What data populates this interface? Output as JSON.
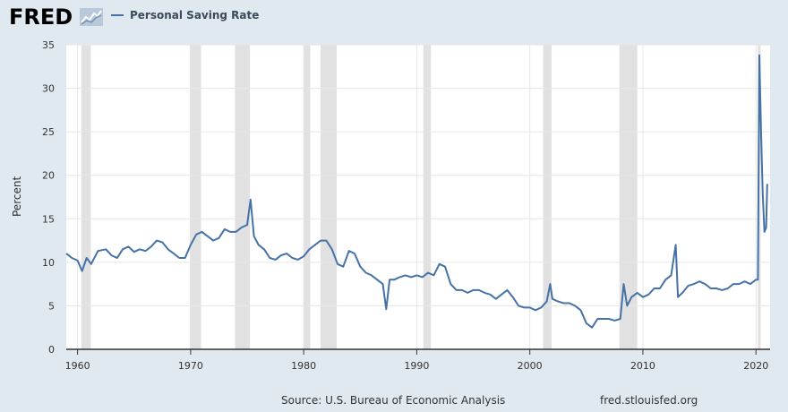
{
  "header": {
    "logo_text": "FRED",
    "logo_icon": "trend-chart-icon",
    "legend_label": "Personal Saving Rate",
    "legend_color": "#4572a7"
  },
  "footer": {
    "source": "Source: U.S. Bureau of Economic Analysis",
    "url": "fred.stlouisfed.org"
  },
  "chart_data": {
    "type": "line",
    "title": "",
    "xlabel": "",
    "ylabel": "Percent",
    "xlim": [
      1959.0,
      2021.25
    ],
    "ylim": [
      0,
      35
    ],
    "x_ticks": [
      1960,
      1970,
      1980,
      1990,
      2000,
      2010,
      2020
    ],
    "y_ticks": [
      0,
      5,
      10,
      15,
      20,
      25,
      30,
      35
    ],
    "grid": true,
    "legend_position": "top-left",
    "line_color": "#4572a7",
    "recession_color": "#e1e1e1",
    "recessions": [
      [
        1960.33,
        1961.17
      ],
      [
        1969.92,
        1970.92
      ],
      [
        1973.92,
        1975.25
      ],
      [
        1980.0,
        1980.58
      ],
      [
        1981.5,
        1982.92
      ],
      [
        1990.58,
        1991.25
      ],
      [
        2001.17,
        2001.92
      ],
      [
        2007.92,
        2009.5
      ],
      [
        2020.17,
        2020.42
      ]
    ],
    "series": [
      {
        "name": "Personal Saving Rate",
        "x": [
          1959.0,
          1959.5,
          1960.0,
          1960.4,
          1960.8,
          1961.2,
          1961.8,
          1962.5,
          1963.0,
          1963.5,
          1964.0,
          1964.5,
          1965.0,
          1965.5,
          1966.0,
          1966.5,
          1967.0,
          1967.5,
          1968.0,
          1968.5,
          1969.0,
          1969.5,
          1970.0,
          1970.5,
          1971.0,
          1971.5,
          1972.0,
          1972.5,
          1973.0,
          1973.5,
          1974.0,
          1974.5,
          1975.0,
          1975.3,
          1975.6,
          1976.0,
          1976.5,
          1977.0,
          1977.5,
          1978.0,
          1978.5,
          1979.0,
          1979.5,
          1980.0,
          1980.5,
          1981.0,
          1981.5,
          1982.0,
          1982.5,
          1983.0,
          1983.5,
          1984.0,
          1984.5,
          1985.0,
          1985.5,
          1986.0,
          1986.5,
          1987.0,
          1987.3,
          1987.6,
          1988.0,
          1988.5,
          1989.0,
          1989.5,
          1990.0,
          1990.5,
          1991.0,
          1991.5,
          1992.0,
          1992.5,
          1993.0,
          1993.5,
          1994.0,
          1994.5,
          1995.0,
          1995.5,
          1996.0,
          1996.5,
          1997.0,
          1997.5,
          1998.0,
          1998.5,
          1999.0,
          1999.5,
          2000.0,
          2000.5,
          2001.0,
          2001.5,
          2001.8,
          2002.0,
          2002.5,
          2003.0,
          2003.5,
          2004.0,
          2004.5,
          2005.0,
          2005.5,
          2006.0,
          2006.5,
          2007.0,
          2007.5,
          2008.0,
          2008.3,
          2008.6,
          2009.0,
          2009.5,
          2010.0,
          2010.5,
          2011.0,
          2011.5,
          2012.0,
          2012.5,
          2012.9,
          2013.1,
          2013.5,
          2014.0,
          2014.5,
          2015.0,
          2015.5,
          2016.0,
          2016.5,
          2017.0,
          2017.5,
          2018.0,
          2018.5,
          2019.0,
          2019.5,
          2020.0,
          2020.17,
          2020.3,
          2020.45,
          2020.6,
          2020.75,
          2020.9,
          2021.0
        ],
        "values": [
          11.0,
          10.5,
          10.2,
          9.0,
          10.5,
          9.8,
          11.3,
          11.5,
          10.8,
          10.5,
          11.5,
          11.8,
          11.2,
          11.5,
          11.3,
          11.8,
          12.5,
          12.3,
          11.5,
          11.0,
          10.5,
          10.5,
          12.0,
          13.2,
          13.5,
          13.0,
          12.5,
          12.8,
          13.8,
          13.5,
          13.5,
          14.0,
          14.3,
          17.2,
          13.0,
          12.0,
          11.5,
          10.5,
          10.3,
          10.8,
          11.0,
          10.5,
          10.3,
          10.7,
          11.5,
          12.0,
          12.5,
          12.5,
          11.5,
          9.8,
          9.5,
          11.3,
          11.0,
          9.5,
          8.8,
          8.5,
          8.0,
          7.5,
          4.6,
          8.0,
          8.0,
          8.3,
          8.5,
          8.3,
          8.5,
          8.3,
          8.8,
          8.5,
          9.8,
          9.5,
          7.5,
          6.8,
          6.8,
          6.5,
          6.8,
          6.8,
          6.5,
          6.3,
          5.8,
          6.3,
          6.8,
          6.0,
          5.0,
          4.8,
          4.8,
          4.5,
          4.8,
          5.5,
          7.5,
          5.8,
          5.5,
          5.3,
          5.3,
          5.0,
          4.5,
          3.0,
          2.5,
          3.5,
          3.5,
          3.5,
          3.3,
          3.5,
          7.5,
          5.0,
          6.0,
          6.5,
          6.0,
          6.3,
          7.0,
          7.0,
          8.0,
          8.5,
          12.0,
          6.0,
          6.5,
          7.3,
          7.5,
          7.8,
          7.5,
          7.0,
          7.0,
          6.8,
          7.0,
          7.5,
          7.5,
          7.8,
          7.5,
          8.0,
          8.0,
          33.8,
          25.0,
          17.8,
          13.5,
          14.0,
          19.0
        ]
      }
    ]
  }
}
